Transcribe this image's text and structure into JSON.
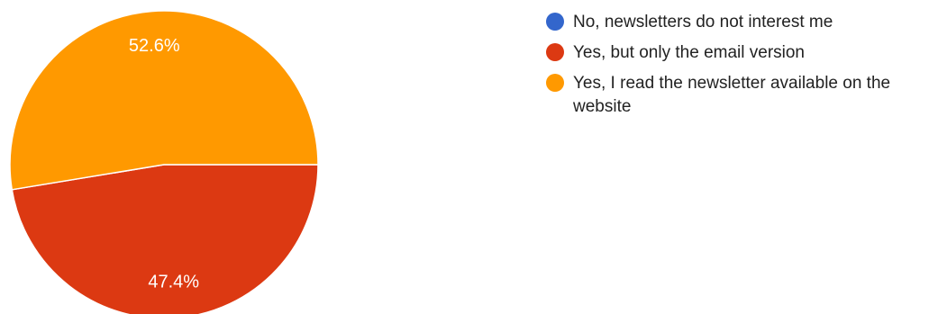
{
  "chart_data": {
    "type": "pie",
    "categories": [
      "No, newsletters do not interest me",
      "Yes, but only the email version",
      "Yes, I read the newsletter available on the website"
    ],
    "values": [
      0,
      47.4,
      52.6
    ],
    "value_labels": [
      "",
      "47.4%",
      "52.6%"
    ],
    "colors": [
      "#3366cc",
      "#dc3912",
      "#ff9900"
    ],
    "legend_position": "right"
  }
}
